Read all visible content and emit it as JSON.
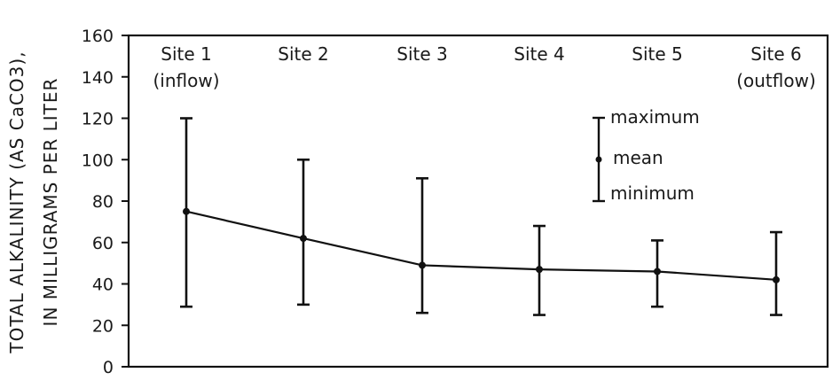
{
  "chart_data": {
    "type": "error-bar-line",
    "ylabel_line1": "TOTAL ALKALINITY (AS CaCO3),",
    "ylabel_line2": "IN MILLIGRAMS PER LITER",
    "ylim": [
      0,
      160
    ],
    "yticks": [
      0,
      20,
      40,
      60,
      80,
      100,
      120,
      140,
      160
    ],
    "ytick_labels": [
      "0",
      "20",
      "40",
      "60",
      "80",
      "100",
      "120",
      "140",
      "160"
    ],
    "categories": [
      {
        "line1": "Site 1",
        "line2": "(inflow)"
      },
      {
        "line1": "Site 2",
        "line2": ""
      },
      {
        "line1": "Site 3",
        "line2": ""
      },
      {
        "line1": "Site 4",
        "line2": ""
      },
      {
        "line1": "Site 5",
        "line2": ""
      },
      {
        "line1": "Site 6",
        "line2": "(outflow)"
      }
    ],
    "series": [
      {
        "mean": [
          75,
          62,
          49,
          47,
          46,
          42
        ],
        "maximum": [
          120,
          100,
          91,
          68,
          61,
          65
        ],
        "minimum": [
          29,
          30,
          26,
          25,
          29,
          25
        ]
      }
    ],
    "legend": {
      "position": "top-right",
      "maximum": "maximum",
      "mean": "mean",
      "minimum": "minimum"
    },
    "grid": false
  }
}
